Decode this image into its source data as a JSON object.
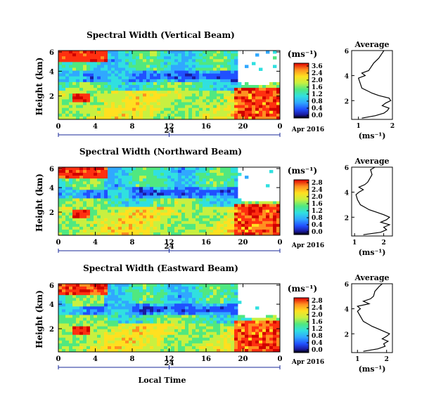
{
  "chart_data": [
    {
      "type": "heatmap",
      "title": "Spectral Width (Vertical Beam)",
      "xlabel": "",
      "ylabel": "Height (km)",
      "x_ticks": [
        "0",
        "4",
        "8",
        "12",
        "16",
        "20",
        "0"
      ],
      "y_ticks": [
        "6",
        "4",
        "2"
      ],
      "day_marker": "24",
      "date_label": "Apr 2016",
      "colorbar": {
        "unit": "(ms⁻¹)",
        "ticks": [
          "3.6",
          "2.4",
          "2.0",
          "1.6",
          "1.2",
          "0.8",
          "0.4",
          "0.0"
        ],
        "range": [
          0.0,
          3.6
        ]
      },
      "average": {
        "title": "Average",
        "xlabel": "(ms⁻¹)",
        "x_ticks": [
          "1",
          "2"
        ],
        "y_ticks": [
          "6",
          "4",
          "2"
        ],
        "xlim": [
          0.8,
          2.0
        ],
        "ylim": [
          0.5,
          6.0
        ],
        "heights": [
          0.6,
          0.8,
          1.0,
          1.2,
          1.4,
          1.6,
          1.8,
          2.0,
          2.2,
          2.4,
          2.6,
          2.8,
          3.0,
          3.4,
          3.8,
          4.0,
          4.2,
          4.4,
          4.6,
          4.8,
          5.0,
          5.4,
          5.8,
          6.0
        ],
        "values": [
          1.1,
          1.5,
          1.75,
          1.85,
          1.9,
          1.7,
          1.8,
          1.95,
          1.9,
          1.6,
          1.4,
          1.25,
          1.1,
          1.05,
          1.0,
          1.2,
          1.1,
          1.3,
          1.35,
          1.4,
          1.45,
          1.6,
          1.7,
          1.75
        ]
      }
    },
    {
      "type": "heatmap",
      "title": "Spectral Width (Northward Beam)",
      "xlabel": "",
      "ylabel": "Height (km)",
      "x_ticks": [
        "0",
        "4",
        "8",
        "12",
        "16",
        "20",
        "0"
      ],
      "y_ticks": [
        "6",
        "4",
        "2"
      ],
      "day_marker": "24",
      "date_label": "Apr 2016",
      "colorbar": {
        "unit": "(ms⁻¹)",
        "ticks": [
          "2.8",
          "2.4",
          "2.0",
          "1.6",
          "1.2",
          "0.8",
          "0.4",
          "0.0"
        ],
        "range": [
          0.0,
          2.8
        ]
      },
      "average": {
        "title": "Average",
        "xlabel": "(ms⁻¹)",
        "x_ticks": [
          "1",
          "2"
        ],
        "y_ticks": [
          "6",
          "4",
          "2"
        ],
        "xlim": [
          0.9,
          2.3
        ],
        "ylim": [
          0.5,
          6.0
        ],
        "heights": [
          0.6,
          0.8,
          1.0,
          1.2,
          1.4,
          1.6,
          1.8,
          2.0,
          2.2,
          2.4,
          2.6,
          2.8,
          3.0,
          3.4,
          3.8,
          4.0,
          4.2,
          4.4,
          4.6,
          4.8,
          5.0,
          5.4,
          5.8,
          6.0
        ],
        "values": [
          1.3,
          1.9,
          2.1,
          2.0,
          2.2,
          1.9,
          2.1,
          2.2,
          2.0,
          1.75,
          1.5,
          1.35,
          1.2,
          1.1,
          1.05,
          1.15,
          1.3,
          1.15,
          1.35,
          1.45,
          1.5,
          1.6,
          1.55,
          1.7
        ]
      }
    },
    {
      "type": "heatmap",
      "title": "Spectral Width (Eastward Beam)",
      "xlabel": "Local Time",
      "ylabel": "Height (km)",
      "x_ticks": [
        "0",
        "4",
        "8",
        "12",
        "16",
        "20",
        "0"
      ],
      "y_ticks": [
        "6",
        "4",
        "2"
      ],
      "day_marker": "24",
      "date_label": "Apr 2016",
      "colorbar": {
        "unit": "(ms⁻¹)",
        "ticks": [
          "2.8",
          "2.4",
          "2.0",
          "1.6",
          "1.2",
          "0.8",
          "0.4",
          "0.0"
        ],
        "range": [
          0.0,
          2.8
        ]
      },
      "average": {
        "title": "Average",
        "xlabel": "(ms⁻¹)",
        "x_ticks": [
          "1",
          "2"
        ],
        "y_ticks": [
          "6",
          "4",
          "2"
        ],
        "xlim": [
          0.8,
          2.2
        ],
        "ylim": [
          0.5,
          6.0
        ],
        "heights": [
          0.6,
          0.8,
          1.0,
          1.2,
          1.4,
          1.6,
          1.8,
          2.0,
          2.2,
          2.4,
          2.6,
          2.8,
          3.0,
          3.4,
          3.8,
          4.0,
          4.2,
          4.4,
          4.6,
          4.8,
          5.0,
          5.4,
          5.8,
          6.0
        ],
        "values": [
          1.2,
          1.7,
          1.95,
          1.9,
          2.05,
          1.85,
          2.0,
          2.1,
          1.9,
          1.7,
          1.5,
          1.35,
          1.2,
          1.1,
          1.0,
          1.1,
          1.0,
          1.4,
          1.2,
          1.45,
          1.55,
          1.6,
          1.75,
          1.85
        ]
      }
    }
  ],
  "colors": {
    "scale": [
      "#000000",
      "#1a1aa0",
      "#2050ff",
      "#30a8ff",
      "#30e0e0",
      "#50e880",
      "#c8f040",
      "#ffe020",
      "#ff9020",
      "#ff3010",
      "#d00000"
    ],
    "axis_blue": "#1a2a9a"
  }
}
